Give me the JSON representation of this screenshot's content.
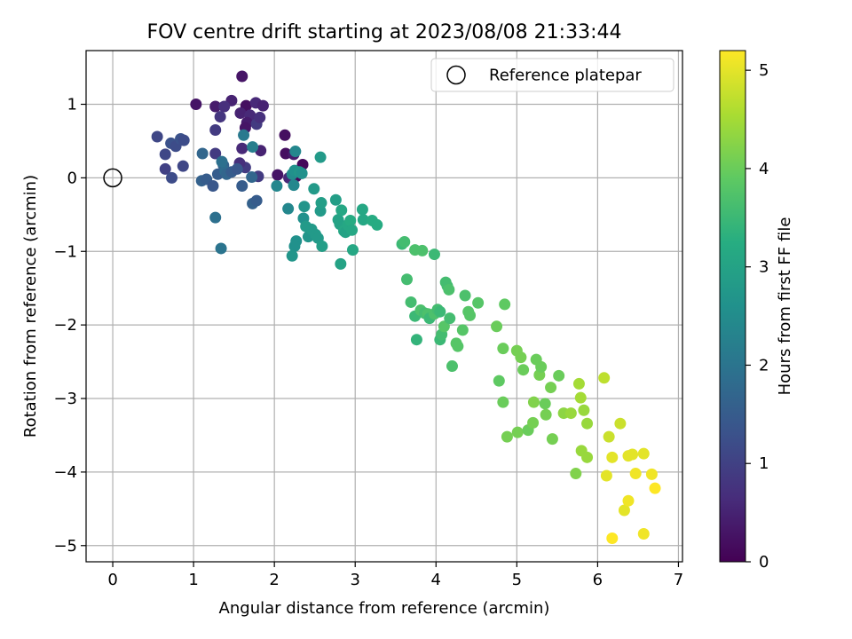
{
  "chart_data": {
    "type": "scatter",
    "title": "FOV centre drift starting at 2023/08/08 21:33:44",
    "xlabel": "Angular distance from reference (arcmin)",
    "ylabel": "Rotation from reference (arcmin)",
    "xlim": [
      -0.33,
      7.05
    ],
    "ylim": [
      -5.22,
      1.73
    ],
    "xticks": [
      0,
      1,
      2,
      3,
      4,
      5,
      6,
      7
    ],
    "xtick_labels": [
      "0",
      "1",
      "2",
      "3",
      "4",
      "5",
      "6",
      "7"
    ],
    "yticks": [
      -5,
      -4,
      -3,
      -2,
      -1,
      0,
      1
    ],
    "ytick_labels": [
      "−5",
      "−4",
      "−3",
      "−2",
      "−1",
      "0",
      "1"
    ],
    "grid": true,
    "legend": {
      "position": "top-right",
      "entries": [
        "Reference platepar"
      ]
    },
    "reference_point": {
      "x": 0,
      "y": 0
    },
    "colorbar": {
      "label": "Hours from first FF file",
      "range": [
        0,
        5.2
      ],
      "ticks": [
        0,
        1,
        2,
        3,
        4,
        5
      ],
      "tick_labels": [
        "0",
        "1",
        "2",
        "3",
        "4",
        "5"
      ],
      "colormap": "viridis"
    },
    "points": [
      [
        1.03,
        1.0,
        0.3
      ],
      [
        1.27,
        0.97,
        0.4
      ],
      [
        1.47,
        1.05,
        0.5
      ],
      [
        1.6,
        1.38,
        0.3
      ],
      [
        1.65,
        0.98,
        0.2
      ],
      [
        1.77,
        1.02,
        0.6
      ],
      [
        1.86,
        0.98,
        0.5
      ],
      [
        1.38,
        0.97,
        0.7
      ],
      [
        1.33,
        0.83,
        0.8
      ],
      [
        1.58,
        0.88,
        0.5
      ],
      [
        1.7,
        0.85,
        0.6
      ],
      [
        1.66,
        0.75,
        0.4
      ],
      [
        1.78,
        0.73,
        0.9
      ],
      [
        1.82,
        0.82,
        0.7
      ],
      [
        1.64,
        0.68,
        0.3
      ],
      [
        1.27,
        0.65,
        0.9
      ],
      [
        1.6,
        0.4,
        0.6
      ],
      [
        1.83,
        0.37,
        0.5
      ],
      [
        2.13,
        0.58,
        0.2
      ],
      [
        2.14,
        0.33,
        0.2
      ],
      [
        2.24,
        0.32,
        0.4
      ],
      [
        2.35,
        0.18,
        0.1
      ],
      [
        2.04,
        0.04,
        0.3
      ],
      [
        2.18,
        0.0,
        0.6
      ],
      [
        2.27,
        0.02,
        0.1
      ],
      [
        1.27,
        0.33,
        0.9
      ],
      [
        1.64,
        0.14,
        0.9
      ],
      [
        1.8,
        0.02,
        0.9
      ],
      [
        1.57,
        0.2,
        0.7
      ],
      [
        0.55,
        0.56,
        1.1
      ],
      [
        0.65,
        0.32,
        1.1
      ],
      [
        0.72,
        0.47,
        1.3
      ],
      [
        0.78,
        0.43,
        1.2
      ],
      [
        0.84,
        0.53,
        1.3
      ],
      [
        0.88,
        0.51,
        1.2
      ],
      [
        0.65,
        0.12,
        1.0
      ],
      [
        0.73,
        0.0,
        1.2
      ],
      [
        0.87,
        0.16,
        1.1
      ],
      [
        1.11,
        0.33,
        1.7
      ],
      [
        1.1,
        -0.04,
        1.6
      ],
      [
        1.16,
        -0.02,
        1.5
      ],
      [
        1.24,
        -0.11,
        1.4
      ],
      [
        1.3,
        0.05,
        1.5
      ],
      [
        1.37,
        0.17,
        1.6
      ],
      [
        1.39,
        0.09,
        1.8
      ],
      [
        1.41,
        0.05,
        1.7
      ],
      [
        1.47,
        0.08,
        1.5
      ],
      [
        1.54,
        0.12,
        1.4
      ],
      [
        1.6,
        -0.11,
        1.5
      ],
      [
        1.72,
        0.01,
        1.7
      ],
      [
        1.73,
        -0.35,
        1.6
      ],
      [
        1.78,
        -0.31,
        1.5
      ],
      [
        1.62,
        0.58,
        2.1
      ],
      [
        1.73,
        0.42,
        2.2
      ],
      [
        1.27,
        -0.54,
        1.9
      ],
      [
        1.34,
        -0.96,
        2.0
      ],
      [
        1.35,
        0.22,
        1.9
      ],
      [
        2.03,
        -0.11,
        2.4
      ],
      [
        2.17,
        -0.42,
        2.4
      ],
      [
        2.22,
        0.05,
        2.5
      ],
      [
        2.24,
        -0.1,
        2.4
      ],
      [
        2.26,
        0.36,
        2.4
      ],
      [
        2.25,
        0.1,
        2.6
      ],
      [
        2.27,
        -0.86,
        2.6
      ],
      [
        2.25,
        -0.93,
        2.6
      ],
      [
        2.22,
        -1.06,
        2.7
      ],
      [
        2.31,
        0.08,
        2.7
      ],
      [
        2.34,
        0.06,
        2.6
      ],
      [
        2.36,
        -0.55,
        2.6
      ],
      [
        2.37,
        -0.39,
        2.7
      ],
      [
        2.39,
        -0.66,
        2.8
      ],
      [
        2.42,
        -0.8,
        2.7
      ],
      [
        2.46,
        -0.7,
        2.8
      ],
      [
        2.49,
        -0.15,
        2.8
      ],
      [
        2.51,
        -0.77,
        2.8
      ],
      [
        2.54,
        -0.82,
        2.8
      ],
      [
        2.57,
        -0.45,
        2.8
      ],
      [
        2.58,
        -0.34,
        2.9
      ],
      [
        2.59,
        -0.93,
        2.9
      ],
      [
        2.57,
        0.28,
        2.8
      ],
      [
        2.76,
        -0.3,
        2.9
      ],
      [
        2.79,
        -0.57,
        3.0
      ],
      [
        2.81,
        -0.63,
        3.0
      ],
      [
        2.83,
        -0.44,
        3.1
      ],
      [
        2.85,
        -0.66,
        3.0
      ],
      [
        2.86,
        -0.72,
        3.1
      ],
      [
        2.88,
        -0.74,
        3.0
      ],
      [
        2.91,
        -0.64,
        3.1
      ],
      [
        2.94,
        -0.58,
        3.2
      ],
      [
        2.96,
        -0.71,
        3.1
      ],
      [
        2.97,
        -0.98,
        3.1
      ],
      [
        2.82,
        -1.17,
        3.0
      ],
      [
        3.09,
        -0.43,
        3.1
      ],
      [
        3.1,
        -0.57,
        3.1
      ],
      [
        3.21,
        -0.58,
        3.2
      ],
      [
        3.27,
        -0.64,
        3.2
      ],
      [
        3.58,
        -0.9,
        3.5
      ],
      [
        3.61,
        -0.87,
        3.6
      ],
      [
        3.64,
        -1.38,
        3.6
      ],
      [
        3.69,
        -1.69,
        3.6
      ],
      [
        3.74,
        -0.98,
        3.7
      ],
      [
        3.74,
        -1.88,
        3.5
      ],
      [
        3.76,
        -2.2,
        3.4
      ],
      [
        3.81,
        -1.8,
        3.7
      ],
      [
        3.83,
        -0.99,
        3.7
      ],
      [
        3.86,
        -1.84,
        3.6
      ],
      [
        3.9,
        -1.85,
        3.7
      ],
      [
        3.92,
        -1.91,
        3.5
      ],
      [
        3.98,
        -1.85,
        3.7
      ],
      [
        3.98,
        -1.04,
        3.5
      ],
      [
        4.02,
        -1.79,
        3.6
      ],
      [
        4.05,
        -1.82,
        3.5
      ],
      [
        4.05,
        -2.2,
        3.5
      ],
      [
        4.07,
        -2.13,
        3.6
      ],
      [
        4.1,
        -2.02,
        3.8
      ],
      [
        4.12,
        -1.42,
        3.6
      ],
      [
        4.14,
        -1.47,
        3.6
      ],
      [
        4.16,
        -1.52,
        3.7
      ],
      [
        4.17,
        -1.91,
        3.6
      ],
      [
        4.2,
        -2.56,
        3.7
      ],
      [
        4.25,
        -2.25,
        3.8
      ],
      [
        4.27,
        -2.29,
        3.8
      ],
      [
        4.33,
        -2.07,
        3.8
      ],
      [
        4.36,
        -1.6,
        3.7
      ],
      [
        4.4,
        -1.82,
        3.8
      ],
      [
        4.42,
        -1.87,
        3.8
      ],
      [
        4.52,
        -1.7,
        3.8
      ],
      [
        4.75,
        -2.02,
        4.0
      ],
      [
        4.78,
        -2.76,
        3.9
      ],
      [
        4.83,
        -2.32,
        4.0
      ],
      [
        4.83,
        -3.05,
        4.0
      ],
      [
        4.85,
        -1.72,
        3.9
      ],
      [
        4.88,
        -3.52,
        4.1
      ],
      [
        5.0,
        -2.35,
        4.1
      ],
      [
        5.01,
        -3.46,
        4.1
      ],
      [
        5.05,
        -2.44,
        4.1
      ],
      [
        5.08,
        -2.61,
        4.0
      ],
      [
        5.14,
        -3.43,
        4.0
      ],
      [
        5.2,
        -3.33,
        4.1
      ],
      [
        5.21,
        -3.05,
        4.2
      ],
      [
        5.24,
        -2.47,
        4.0
      ],
      [
        5.28,
        -2.68,
        4.1
      ],
      [
        5.3,
        -2.57,
        4.0
      ],
      [
        5.35,
        -3.07,
        4.0
      ],
      [
        5.36,
        -3.22,
        4.1
      ],
      [
        5.42,
        -2.85,
        4.1
      ],
      [
        5.44,
        -3.55,
        4.1
      ],
      [
        5.52,
        -2.69,
        4.0
      ],
      [
        5.58,
        -3.2,
        4.3
      ],
      [
        5.67,
        -3.2,
        4.4
      ],
      [
        5.73,
        -4.02,
        4.2
      ],
      [
        5.77,
        -2.8,
        4.5
      ],
      [
        5.79,
        -2.99,
        4.5
      ],
      [
        5.8,
        -3.71,
        4.4
      ],
      [
        5.83,
        -3.16,
        4.4
      ],
      [
        5.87,
        -3.34,
        4.4
      ],
      [
        5.87,
        -3.8,
        4.4
      ],
      [
        6.08,
        -2.72,
        4.7
      ],
      [
        6.11,
        -4.05,
        5.0
      ],
      [
        6.14,
        -3.52,
        4.8
      ],
      [
        6.18,
        -4.9,
        5.2
      ],
      [
        6.18,
        -3.8,
        5.0
      ],
      [
        6.28,
        -3.34,
        4.8
      ],
      [
        6.33,
        -4.52,
        5.0
      ],
      [
        6.38,
        -3.78,
        5.0
      ],
      [
        6.38,
        -4.39,
        5.1
      ],
      [
        6.43,
        -3.76,
        5.0
      ],
      [
        6.47,
        -4.02,
        5.1
      ],
      [
        6.57,
        -3.75,
        5.0
      ],
      [
        6.57,
        -4.84,
        5.1
      ],
      [
        6.67,
        -4.03,
        5.1
      ],
      [
        6.71,
        -4.22,
        5.2
      ]
    ]
  }
}
